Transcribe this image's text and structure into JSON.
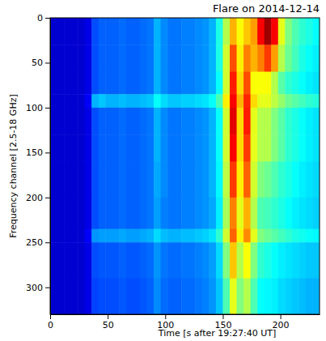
{
  "chart_data": {
    "type": "heatmap",
    "title": "Flare on 2014-12-14",
    "x_label": "Time [s after 19:27:40 UT]",
    "y_label": "Frequency channel [2.5-18 GHz]",
    "xlim": [
      0,
      234
    ],
    "ylim": [
      330,
      0
    ],
    "xticks": [
      0,
      50,
      100,
      150,
      200
    ],
    "yticks": [
      0,
      50,
      100,
      150,
      200,
      250,
      300
    ],
    "x_edges": [
      0,
      6,
      12,
      18,
      24,
      30,
      36,
      42,
      48,
      54,
      60,
      66,
      72,
      78,
      84,
      90,
      96,
      102,
      108,
      114,
      120,
      126,
      132,
      138,
      144,
      150,
      156,
      162,
      168,
      174,
      180,
      186,
      192,
      198,
      204,
      210,
      216,
      222,
      228,
      234
    ],
    "y_edges": [
      0,
      30,
      60,
      85,
      100,
      130,
      160,
      200,
      235,
      250,
      290,
      330
    ],
    "zlim": [
      0,
      1
    ],
    "cells": [
      [
        0.08,
        0.08,
        0.08,
        0.08,
        0.08,
        0.1,
        0.2,
        0.22,
        0.22,
        0.22,
        0.23,
        0.22,
        0.22,
        0.23,
        0.24,
        0.3,
        0.26,
        0.24,
        0.24,
        0.25,
        0.25,
        0.26,
        0.27,
        0.3,
        0.4,
        0.55,
        0.7,
        0.62,
        0.68,
        0.72,
        0.88,
        0.97,
        0.88,
        0.6,
        0.5,
        0.45,
        0.42,
        0.4,
        0.38
      ],
      [
        0.08,
        0.08,
        0.08,
        0.08,
        0.08,
        0.1,
        0.2,
        0.22,
        0.22,
        0.22,
        0.23,
        0.22,
        0.22,
        0.23,
        0.24,
        0.3,
        0.26,
        0.24,
        0.24,
        0.25,
        0.25,
        0.26,
        0.27,
        0.3,
        0.4,
        0.58,
        0.8,
        0.64,
        0.75,
        0.7,
        0.75,
        0.82,
        0.72,
        0.55,
        0.48,
        0.44,
        0.4,
        0.38,
        0.36
      ],
      [
        0.08,
        0.08,
        0.08,
        0.08,
        0.08,
        0.1,
        0.2,
        0.22,
        0.22,
        0.22,
        0.23,
        0.22,
        0.22,
        0.23,
        0.24,
        0.3,
        0.26,
        0.24,
        0.24,
        0.25,
        0.25,
        0.26,
        0.27,
        0.3,
        0.38,
        0.58,
        0.85,
        0.66,
        0.8,
        0.62,
        0.62,
        0.62,
        0.55,
        0.46,
        0.42,
        0.4,
        0.38,
        0.36,
        0.35
      ],
      [
        0.08,
        0.08,
        0.08,
        0.08,
        0.08,
        0.12,
        0.3,
        0.32,
        0.3,
        0.3,
        0.31,
        0.3,
        0.3,
        0.31,
        0.32,
        0.38,
        0.34,
        0.32,
        0.32,
        0.33,
        0.33,
        0.34,
        0.35,
        0.38,
        0.45,
        0.64,
        0.88,
        0.7,
        0.84,
        0.66,
        0.6,
        0.6,
        0.56,
        0.52,
        0.48,
        0.46,
        0.44,
        0.42,
        0.41
      ],
      [
        0.08,
        0.08,
        0.08,
        0.08,
        0.08,
        0.1,
        0.2,
        0.22,
        0.22,
        0.22,
        0.23,
        0.22,
        0.22,
        0.23,
        0.24,
        0.3,
        0.26,
        0.24,
        0.24,
        0.25,
        0.25,
        0.26,
        0.27,
        0.3,
        0.38,
        0.58,
        0.9,
        0.66,
        0.85,
        0.6,
        0.55,
        0.55,
        0.5,
        0.46,
        0.42,
        0.4,
        0.38,
        0.36,
        0.35
      ],
      [
        0.08,
        0.08,
        0.08,
        0.08,
        0.08,
        0.1,
        0.2,
        0.22,
        0.22,
        0.22,
        0.23,
        0.22,
        0.22,
        0.23,
        0.24,
        0.3,
        0.26,
        0.24,
        0.24,
        0.25,
        0.25,
        0.26,
        0.27,
        0.3,
        0.38,
        0.58,
        0.88,
        0.66,
        0.82,
        0.6,
        0.55,
        0.55,
        0.5,
        0.46,
        0.42,
        0.4,
        0.38,
        0.36,
        0.35
      ],
      [
        0.08,
        0.08,
        0.08,
        0.08,
        0.08,
        0.1,
        0.2,
        0.22,
        0.22,
        0.22,
        0.23,
        0.22,
        0.22,
        0.23,
        0.24,
        0.29,
        0.26,
        0.24,
        0.24,
        0.25,
        0.25,
        0.26,
        0.27,
        0.3,
        0.37,
        0.56,
        0.82,
        0.64,
        0.78,
        0.58,
        0.5,
        0.48,
        0.45,
        0.42,
        0.4,
        0.38,
        0.36,
        0.35,
        0.34
      ],
      [
        0.08,
        0.08,
        0.08,
        0.08,
        0.08,
        0.1,
        0.2,
        0.22,
        0.22,
        0.22,
        0.23,
        0.22,
        0.22,
        0.23,
        0.24,
        0.28,
        0.25,
        0.24,
        0.24,
        0.25,
        0.25,
        0.26,
        0.27,
        0.29,
        0.36,
        0.54,
        0.75,
        0.6,
        0.7,
        0.55,
        0.45,
        0.44,
        0.42,
        0.4,
        0.38,
        0.36,
        0.35,
        0.34,
        0.33
      ],
      [
        0.08,
        0.08,
        0.08,
        0.08,
        0.08,
        0.12,
        0.27,
        0.28,
        0.28,
        0.28,
        0.29,
        0.28,
        0.28,
        0.29,
        0.3,
        0.34,
        0.31,
        0.3,
        0.3,
        0.31,
        0.31,
        0.32,
        0.33,
        0.35,
        0.42,
        0.58,
        0.78,
        0.64,
        0.74,
        0.6,
        0.5,
        0.48,
        0.46,
        0.44,
        0.42,
        0.4,
        0.39,
        0.38,
        0.37
      ],
      [
        0.08,
        0.08,
        0.08,
        0.08,
        0.08,
        0.1,
        0.2,
        0.21,
        0.21,
        0.21,
        0.22,
        0.21,
        0.21,
        0.22,
        0.23,
        0.27,
        0.24,
        0.23,
        0.23,
        0.24,
        0.24,
        0.25,
        0.26,
        0.28,
        0.34,
        0.5,
        0.68,
        0.55,
        0.62,
        0.5,
        0.42,
        0.4,
        0.38,
        0.36,
        0.35,
        0.34,
        0.33,
        0.32,
        0.32
      ],
      [
        0.08,
        0.08,
        0.08,
        0.08,
        0.08,
        0.1,
        0.19,
        0.2,
        0.2,
        0.2,
        0.21,
        0.2,
        0.2,
        0.21,
        0.22,
        0.26,
        0.23,
        0.22,
        0.22,
        0.23,
        0.23,
        0.24,
        0.25,
        0.27,
        0.32,
        0.45,
        0.6,
        0.5,
        0.55,
        0.45,
        0.38,
        0.37,
        0.36,
        0.34,
        0.33,
        0.32,
        0.31,
        0.3,
        0.3
      ]
    ]
  }
}
